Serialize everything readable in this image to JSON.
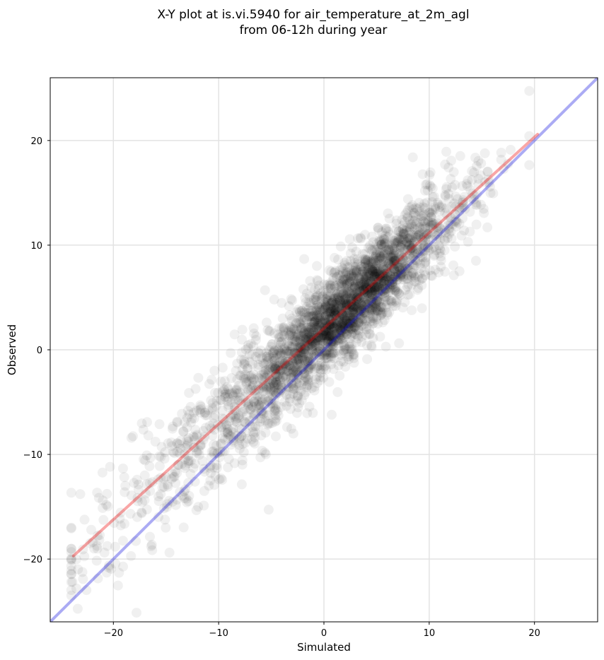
{
  "chart_data": {
    "type": "scatter",
    "title_line1": "X-Y plot at is.vi.5940 for air_temperature_at_2m_agl",
    "title_line2": "from 06-12h during year",
    "xlabel": "Simulated",
    "ylabel": "Observed",
    "xlim": [
      -26,
      26
    ],
    "ylim": [
      -26,
      26
    ],
    "xticks": [
      -20,
      -10,
      0,
      10,
      20
    ],
    "yticks": [
      -20,
      -10,
      0,
      10,
      20
    ],
    "xtick_labels": [
      "−20",
      "−10",
      "0",
      "10",
      "20"
    ],
    "ytick_labels": [
      "−20",
      "−10",
      "0",
      "10",
      "20"
    ],
    "grid": true,
    "point_color": "#000000",
    "point_opacity": 0.06,
    "identity_line": {
      "x": [
        -26,
        26
      ],
      "y": [
        -26,
        26
      ],
      "color": "#0000dd",
      "opacity": 0.33
    },
    "fit_line": {
      "x": [
        -23.8,
        20.3
      ],
      "y": [
        -19.7,
        20.6
      ],
      "color": "#ee0000",
      "opacity": 0.35
    },
    "points_summary": {
      "count": 3000,
      "x_range": [
        -24,
        19.5
      ],
      "slope": 0.92,
      "intercept": 2.0,
      "spread": 2.2
    }
  }
}
